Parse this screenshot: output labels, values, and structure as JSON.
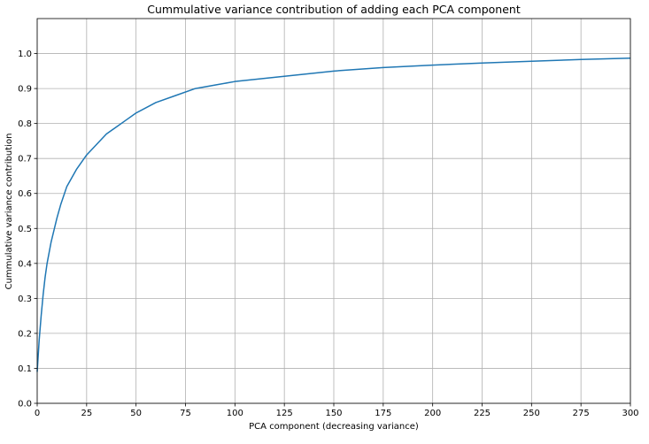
{
  "chart_data": {
    "type": "line",
    "title": "Cummulative variance contribution of adding each PCA component",
    "xlabel": "PCA component (decreasing variance)",
    "ylabel": "Cummulative variance contribution",
    "xlim": [
      0,
      300
    ],
    "ylim": [
      0,
      1.1
    ],
    "grid": true,
    "xticks": [
      0,
      25,
      50,
      75,
      100,
      125,
      150,
      175,
      200,
      225,
      250,
      275,
      300
    ],
    "xtick_labels": [
      "0",
      "25",
      "50",
      "75",
      "100",
      "125",
      "150",
      "175",
      "200",
      "225",
      "250",
      "275",
      "300"
    ],
    "yticks": [
      0.0,
      0.1,
      0.2,
      0.3,
      0.4,
      0.5,
      0.6,
      0.7,
      0.8,
      0.9,
      1.0
    ],
    "ytick_labels": [
      "0.0",
      "0.1",
      "0.2",
      "0.3",
      "0.4",
      "0.5",
      "0.6",
      "0.7",
      "0.8",
      "0.9",
      "1.0"
    ],
    "series": [
      {
        "color": "#1f77b4",
        "x": [
          0,
          1,
          2,
          3,
          4,
          5,
          7,
          10,
          12,
          15,
          20,
          25,
          30,
          35,
          40,
          45,
          50,
          60,
          70,
          80,
          90,
          100,
          125,
          150,
          175,
          200,
          225,
          250,
          275,
          300
        ],
        "y": [
          0.09,
          0.18,
          0.25,
          0.31,
          0.36,
          0.4,
          0.46,
          0.53,
          0.57,
          0.62,
          0.67,
          0.71,
          0.74,
          0.77,
          0.79,
          0.81,
          0.83,
          0.86,
          0.88,
          0.9,
          0.91,
          0.92,
          0.935,
          0.95,
          0.96,
          0.967,
          0.973,
          0.978,
          0.983,
          0.987
        ]
      }
    ]
  }
}
